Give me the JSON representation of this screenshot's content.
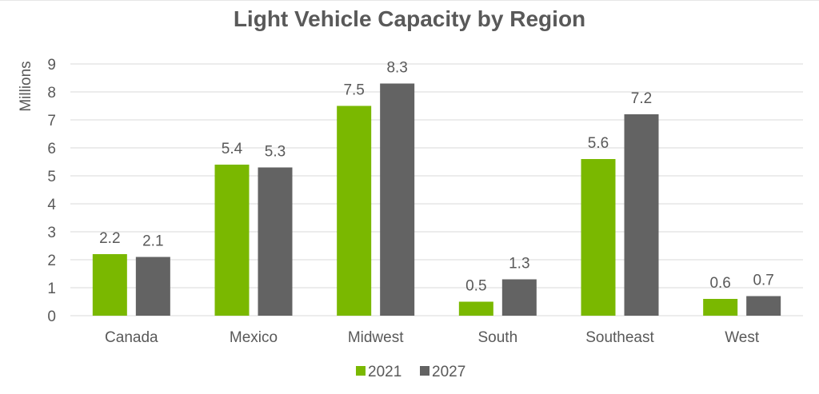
{
  "chart_data": {
    "type": "bar",
    "title": "Light Vehicle Capacity by Region",
    "xlabel": "",
    "ylabel": "Millions",
    "ylim": [
      0,
      9
    ],
    "yticks": [
      "0",
      "1",
      "2",
      "3",
      "4",
      "5",
      "6",
      "7",
      "8",
      "9"
    ],
    "grid": true,
    "legend_position": "bottom",
    "categories": [
      "Canada",
      "Mexico",
      "Midwest",
      "South",
      "Southeast",
      "West"
    ],
    "series": [
      {
        "name": "2021",
        "color": "#7ab800",
        "values": [
          2.2,
          5.4,
          7.5,
          0.5,
          5.6,
          0.6
        ],
        "labels": [
          "2.2",
          "5.4",
          "7.5",
          "0.5",
          "5.6",
          "0.6"
        ]
      },
      {
        "name": "2027",
        "color": "#636363",
        "values": [
          2.1,
          5.3,
          8.3,
          1.3,
          7.2,
          0.7
        ],
        "labels": [
          "2.1",
          "5.3",
          "8.3",
          "1.3",
          "7.2",
          "0.7"
        ]
      }
    ]
  }
}
